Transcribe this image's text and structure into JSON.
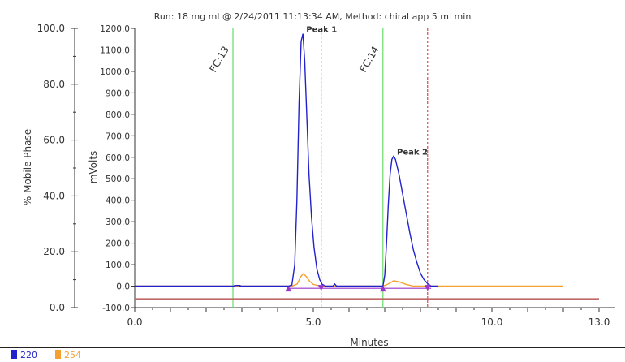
{
  "chart_data": {
    "type": "line",
    "title": "Run: 18 mg ml @ 2/24/2011 11:13:34 AM, Method: chiral app 5 ml min",
    "xlabel": "Minutes",
    "ylabel_left": "% Mobile Phase",
    "ylabel_right": "mVolts",
    "xlim": [
      0,
      13
    ],
    "x_ticks": [
      "0.0",
      "5.0",
      "10.0",
      "13.0"
    ],
    "x_tick_values": [
      0,
      5,
      10,
      13
    ],
    "left_ylim": [
      0,
      100
    ],
    "left_ticks": [
      "0.0",
      "20.0",
      "40.0",
      "60.0",
      "80.0",
      "100.0"
    ],
    "left_tick_values": [
      0,
      20,
      40,
      60,
      80,
      100
    ],
    "right_ylim": [
      -100,
      1200
    ],
    "right_ticks": [
      "-100.0",
      "0.0",
      "100.0",
      "200.0",
      "300.0",
      "400.0",
      "500.0",
      "600.0",
      "700.0",
      "800.0",
      "900.0",
      "1000.0",
      "1100.0",
      "1200.0"
    ],
    "right_tick_values": [
      -100,
      0,
      100,
      200,
      300,
      400,
      500,
      600,
      700,
      800,
      900,
      1000,
      1100,
      1200
    ],
    "series": [
      {
        "name": "220",
        "color": "#2222cc",
        "points": [
          [
            0.0,
            0
          ],
          [
            2.5,
            0
          ],
          [
            2.8,
            0
          ],
          [
            2.8,
            3
          ],
          [
            2.95,
            3
          ],
          [
            2.95,
            0
          ],
          [
            4.3,
            0
          ],
          [
            4.4,
            5
          ],
          [
            4.48,
            100
          ],
          [
            4.54,
            400
          ],
          [
            4.6,
            850
          ],
          [
            4.66,
            1140
          ],
          [
            4.71,
            1175
          ],
          [
            4.76,
            1050
          ],
          [
            4.82,
            780
          ],
          [
            4.88,
            520
          ],
          [
            4.95,
            320
          ],
          [
            5.02,
            180
          ],
          [
            5.1,
            80
          ],
          [
            5.18,
            30
          ],
          [
            5.25,
            8
          ],
          [
            5.35,
            0
          ],
          [
            5.55,
            0
          ],
          [
            5.6,
            10
          ],
          [
            5.65,
            0
          ],
          [
            6.95,
            0
          ],
          [
            7.0,
            50
          ],
          [
            7.05,
            200
          ],
          [
            7.1,
            380
          ],
          [
            7.15,
            520
          ],
          [
            7.2,
            590
          ],
          [
            7.25,
            605
          ],
          [
            7.3,
            590
          ],
          [
            7.4,
            520
          ],
          [
            7.5,
            430
          ],
          [
            7.6,
            340
          ],
          [
            7.7,
            250
          ],
          [
            7.8,
            170
          ],
          [
            7.9,
            110
          ],
          [
            8.0,
            60
          ],
          [
            8.1,
            30
          ],
          [
            8.2,
            12
          ],
          [
            8.3,
            0
          ],
          [
            8.5,
            0
          ]
        ]
      },
      {
        "name": "254",
        "color": "#f5a030",
        "points": [
          [
            0.0,
            0
          ],
          [
            4.4,
            0
          ],
          [
            4.55,
            10
          ],
          [
            4.65,
            45
          ],
          [
            4.72,
            58
          ],
          [
            4.8,
            45
          ],
          [
            4.9,
            22
          ],
          [
            5.0,
            8
          ],
          [
            5.2,
            0
          ],
          [
            6.95,
            0
          ],
          [
            7.1,
            10
          ],
          [
            7.25,
            25
          ],
          [
            7.4,
            20
          ],
          [
            7.6,
            8
          ],
          [
            7.8,
            0
          ],
          [
            12.0,
            0
          ]
        ]
      }
    ],
    "mobile_phase_percent": 3,
    "markers": [
      {
        "label": "FC:13",
        "x": 2.75,
        "color": "#66dd66"
      },
      {
        "label": "FC:14",
        "x": 6.95,
        "color": "#66dd66"
      }
    ],
    "cut_lines": [
      {
        "x": 5.22,
        "color": "#dd2222"
      },
      {
        "x": 8.2,
        "color": "#dd2222"
      }
    ],
    "baseline": {
      "x1": 4.3,
      "x2": 8.3,
      "y": -10,
      "color": "#9933cc"
    },
    "peak_markers": [
      {
        "x": 4.3,
        "shape": "triangle-up"
      },
      {
        "x": 5.22,
        "shape": "triangle-down"
      },
      {
        "x": 6.95,
        "shape": "triangle-up"
      },
      {
        "x": 8.2,
        "shape": "triangle-down"
      }
    ],
    "annotations": [
      {
        "text": "Peak 1",
        "x": 4.71,
        "y": 1175
      },
      {
        "text": "Peak 2",
        "x": 7.25,
        "y": 605
      }
    ],
    "legend": [
      {
        "name": "220",
        "color": "#2222cc"
      },
      {
        "name": "254",
        "color": "#f5a030"
      }
    ],
    "grid": false
  }
}
